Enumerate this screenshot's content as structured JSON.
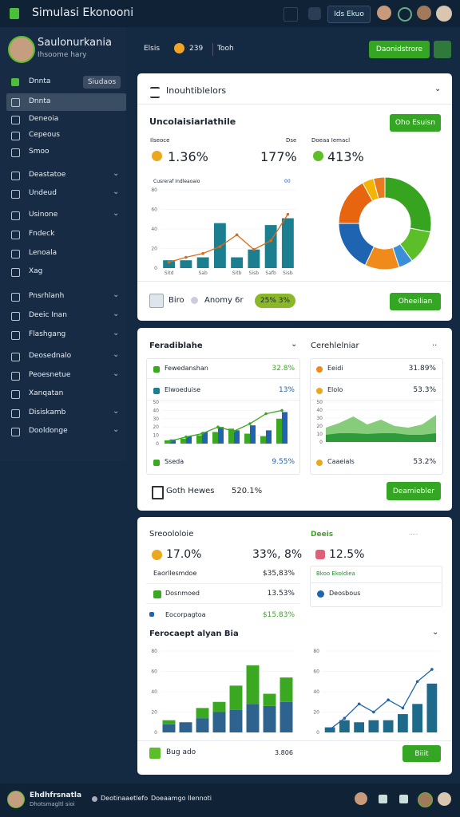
{
  "topbar": {
    "title": "Simulasi Ekonooni",
    "button": "Ids Ekuo"
  },
  "sidebar": {
    "profile": {
      "name": "Saulonurkania",
      "subtitle": "Ihsoome hary"
    },
    "search": {
      "label": "Dnnta",
      "button": "Siudaos"
    },
    "active": 0,
    "items": [
      {
        "label": "Dnnta",
        "chevron": false
      },
      {
        "label": "Deneoia",
        "chevron": false
      },
      {
        "label": "Cepeous",
        "chevron": false
      },
      {
        "label": "Smoo",
        "chevron": false
      },
      {
        "label": "Deastatoe",
        "chevron": true
      },
      {
        "label": "Undeud",
        "chevron": true
      },
      {
        "label": "Usinone",
        "chevron": true
      },
      {
        "label": "Fndeck",
        "chevron": false
      },
      {
        "label": "Lenoala",
        "chevron": false
      },
      {
        "label": "Xag",
        "chevron": false
      },
      {
        "label": "Pnsrhlanh",
        "chevron": true
      },
      {
        "label": "Deeic Inan",
        "chevron": true
      },
      {
        "label": "Flashgang",
        "chevron": true
      },
      {
        "label": "Deosednalo",
        "chevron": true
      },
      {
        "label": "Peoesnetue",
        "chevron": true
      },
      {
        "label": "Xanqatan",
        "chevron": false
      },
      {
        "label": "Disiskamb",
        "chevron": true
      },
      {
        "label": "Dooldonge",
        "chevron": true
      }
    ]
  },
  "header": {
    "label": "Elsis",
    "value": "239",
    "tag": "Tooh",
    "button": "Daonidstrore"
  },
  "card1": {
    "title": "Inouhtiblelors",
    "subtitle": "Uncolaisiarlathile",
    "button": "Oho Esuisn",
    "stats": [
      {
        "label": "Ilseoce",
        "value": "1.36%"
      },
      {
        "label": "Dse",
        "value": "177%"
      },
      {
        "label": "Doeaa Iemacl",
        "value": "413%"
      }
    ],
    "chart": {
      "title": "Cusreraf Indleaoaio",
      "tag": "00",
      "ylim": [
        0,
        80
      ],
      "yticks": [
        0,
        20,
        40,
        60,
        80
      ],
      "categories": [
        "Sitd",
        null,
        "Sab",
        null,
        "Sitb",
        "Sisb",
        "Safb",
        "Sisb"
      ],
      "bars": [
        {
          "values": [
            8,
            8,
            11,
            46,
            11,
            19,
            44,
            51
          ],
          "color": "#1b7f8f"
        }
      ],
      "line": {
        "values": [
          6,
          11,
          15,
          22,
          34,
          19,
          28,
          55
        ],
        "color": "#e06a1a",
        "dots": true
      }
    },
    "donut": {
      "values": [
        28,
        12,
        5,
        12,
        18,
        17,
        4,
        4
      ],
      "colors": [
        "#36a41f",
        "#5cbf2a",
        "#3b8fd9",
        "#f08a1a",
        "#1e64b0",
        "#e8650f",
        "#f5b400",
        "#ea7a20"
      ]
    },
    "footer": {
      "label": "Biro",
      "text": "Anomy 6r",
      "badge": "25% 3%",
      "button": "Oheeilian"
    }
  },
  "card2": {
    "left": {
      "title": "Feradiblahe",
      "rows": [
        {
          "label": "Fewedanshan",
          "value": "32.8%"
        },
        {
          "label": "Elwoeduise",
          "value": "13%"
        },
        {
          "label": "Sseda",
          "value": "9.55%"
        }
      ],
      "chart": {
        "ylim": [
          0,
          50
        ],
        "yticks": [
          0,
          10,
          20,
          30,
          40,
          50
        ],
        "bars": [
          {
            "values": [
              4,
              6,
              10,
              14,
              18,
              12,
              9,
              30
            ],
            "color": "#3aa821"
          },
          {
            "values": [
              5,
              9,
              14,
              20,
              16,
              22,
              16,
              38
            ],
            "color": "#1e64b0"
          }
        ],
        "line": {
          "values": [
            3,
            8,
            12,
            20,
            15,
            24,
            36,
            40
          ],
          "color": "#3aa821",
          "dots": true
        }
      }
    },
    "right": {
      "title": "Cerehlelniar",
      "rows": [
        {
          "label": "Eeidi",
          "value": "31.89%"
        },
        {
          "label": "Elolo",
          "value": "53.3%"
        },
        {
          "label": "Caaeials",
          "value": "53.2%"
        }
      ],
      "chart": {
        "ylim": [
          0,
          50
        ],
        "yticks": [
          0,
          10,
          20,
          30,
          40,
          50
        ],
        "areas": [
          {
            "values": [
              18,
              24,
              32,
              22,
              28,
              20,
              18,
              22,
              34
            ],
            "color": "#86cc7a"
          },
          {
            "values": [
              9,
              11,
              11,
              10,
              11,
              11,
              9,
              9,
              11
            ],
            "color": "#2e9a3a"
          }
        ]
      }
    },
    "footer": {
      "label": "Goth Hewes",
      "value": "520.1%",
      "button": "Deamiebler"
    }
  },
  "card3": {
    "title": "Sreoololoie",
    "side_title": "Deeis",
    "side_tag": "·····",
    "stats": [
      {
        "value": "17.0%"
      },
      {
        "value": "33%, 8%"
      },
      {
        "value": "12.5%"
      }
    ],
    "rows": [
      {
        "label": "Eaorllesmdoe",
        "value": "$35,83%"
      },
      {
        "label": "Dosnmoed",
        "value": "13.53%"
      },
      {
        "label": "Eocorpagtoa",
        "value": "$15.83%"
      }
    ],
    "side_rows": [
      {
        "label": "Bkoo Ekoldiea"
      },
      {
        "label": "Deosbous"
      }
    ],
    "chart_title": "Ferocaept alyan Bia",
    "left_chart": {
      "ylim": [
        0,
        80
      ],
      "yticks": [
        0,
        20,
        40,
        60,
        80
      ],
      "stacked": true,
      "bars": [
        {
          "values": [
            8,
            10,
            14,
            20,
            22,
            28,
            26,
            30
          ],
          "color": "#2e6390"
        },
        {
          "values": [
            4,
            0,
            10,
            10,
            24,
            38,
            12,
            24
          ],
          "color": "#3aa821"
        }
      ]
    },
    "right_chart": {
      "ylim": [
        0,
        80
      ],
      "yticks": [
        0,
        20,
        40,
        60,
        80
      ],
      "bars": [
        {
          "values": [
            5,
            12,
            10,
            12,
            12,
            18,
            28,
            48
          ],
          "color": "#1e6a8a"
        }
      ],
      "line": {
        "values": [
          3,
          14,
          28,
          20,
          32,
          24,
          50,
          62
        ],
        "color": "#1e64b0",
        "dots": true
      }
    },
    "footer": {
      "label": "Bug ado",
      "value": "3.806",
      "button": "Biiit"
    }
  },
  "bottombar": {
    "name": "Ehdhfrsnatla",
    "subtitle": "Dhotsmagltl sioi",
    "link1": "Deotinaaetlefo",
    "link2": "Doeaamgo Ilennoti"
  }
}
